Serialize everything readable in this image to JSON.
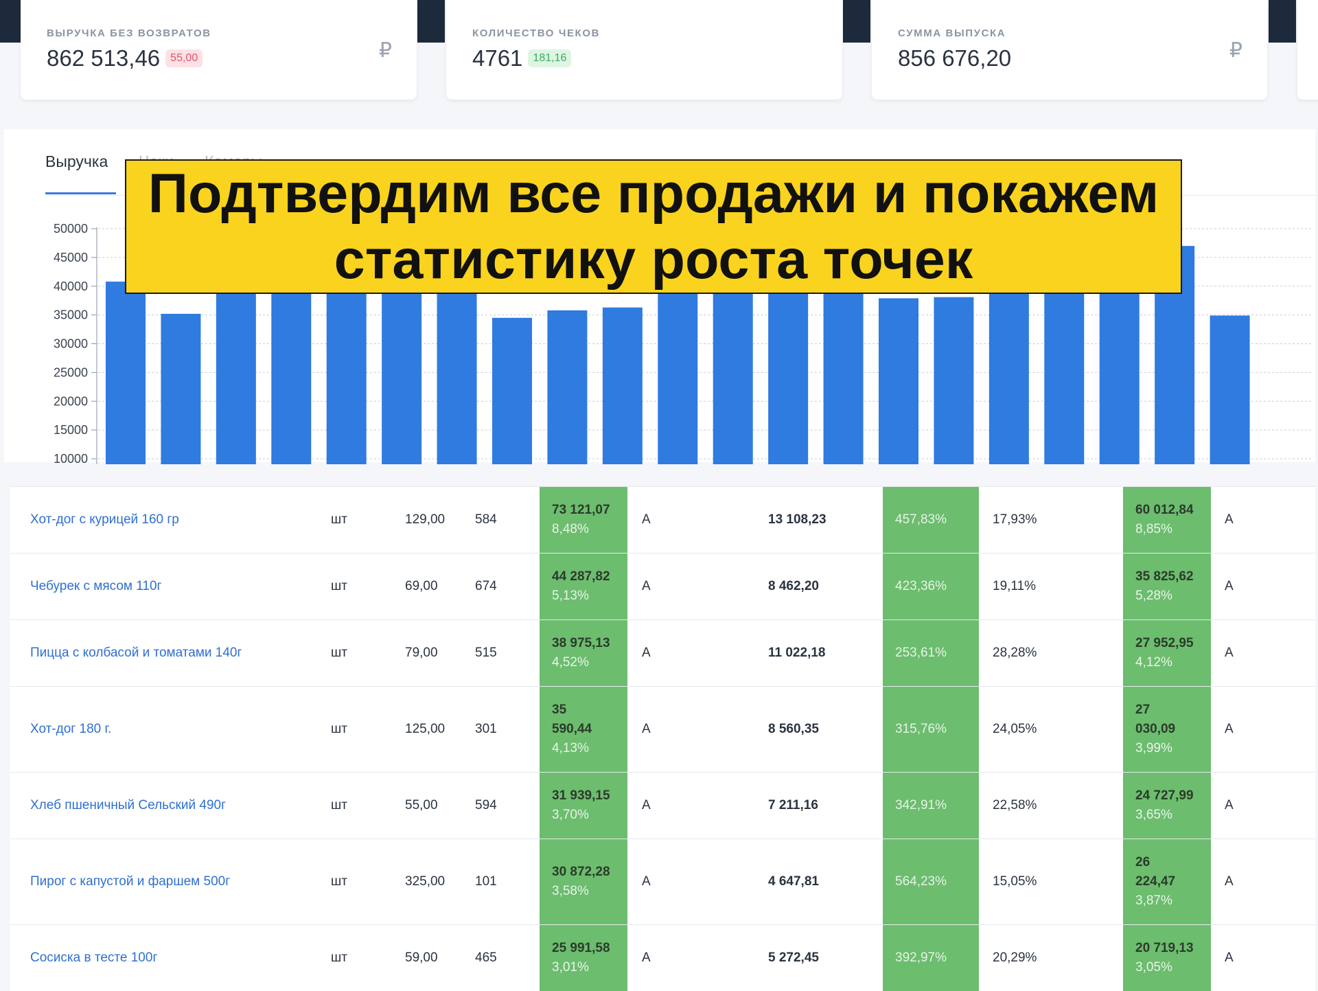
{
  "kpis": [
    {
      "label": "ВЫРУЧКА БЕЗ ВОЗВРАТОВ",
      "value": "862 513,46",
      "badge": "55,00",
      "badge_color": "#e0546a",
      "currency": "₽"
    },
    {
      "label": "КОЛИЧЕСТВО ЧЕКОВ",
      "value": "4761",
      "badge": "181,16",
      "badge_color": "#3aad5d",
      "currency": ""
    },
    {
      "label": "СУММА ВЫПУСКА",
      "value": "856 676,20",
      "badge": "",
      "currency": "₽"
    }
  ],
  "tabs": [
    {
      "label": "Выручка",
      "active": true
    },
    {
      "label": "Чеки",
      "active": false
    },
    {
      "label": "Камеры",
      "active": false
    }
  ],
  "banner": {
    "line1": "Подтвердим все продажи и покажем",
    "line2": "статистику роста точек"
  },
  "chart_data": {
    "type": "bar",
    "color": "#2f7be0",
    "yticks": [
      10000,
      15000,
      20000,
      25000,
      30000,
      35000,
      40000,
      45000,
      50000
    ],
    "ylim": [
      10000,
      50000
    ],
    "values": [
      40800,
      35200,
      41500,
      41500,
      41500,
      41500,
      41500,
      34500,
      35800,
      36300,
      41500,
      41500,
      41500,
      41500,
      37900,
      38100,
      41500,
      41500,
      41500,
      47000,
      34900
    ]
  },
  "table": {
    "rows": [
      {
        "name": "Хот-дог с курицей 160 гр",
        "unit": "шт",
        "price": "129,00",
        "qty": "584",
        "revenue": [
          "73 121,07"
        ],
        "revenue_share": "8,48%",
        "abc1": "A",
        "profit": "13 108,23",
        "markup": "457,83%",
        "margin": "17,93%",
        "cost": [
          "60 012,84"
        ],
        "cost_share": "8,85%",
        "abc2": "A"
      },
      {
        "name": "Чебурек с мясом 110г",
        "unit": "шт",
        "price": "69,00",
        "qty": "674",
        "revenue": [
          "44 287,82"
        ],
        "revenue_share": "5,13%",
        "abc1": "A",
        "profit": "8 462,20",
        "markup": "423,36%",
        "margin": "19,11%",
        "cost": [
          "35 825,62"
        ],
        "cost_share": "5,28%",
        "abc2": "A"
      },
      {
        "name": "Пицца с колбасой и томатами 140г",
        "unit": "шт",
        "price": "79,00",
        "qty": "515",
        "revenue": [
          "38 975,13"
        ],
        "revenue_share": "4,52%",
        "abc1": "A",
        "profit": "11 022,18",
        "markup": "253,61%",
        "margin": "28,28%",
        "cost": [
          "27 952,95"
        ],
        "cost_share": "4,12%",
        "abc2": "A"
      },
      {
        "name": "Хот-дог 180 г.",
        "unit": "шт",
        "price": "125,00",
        "qty": "301",
        "revenue": [
          "35",
          "590,44"
        ],
        "revenue_share": "4,13%",
        "abc1": "A",
        "profit": "8 560,35",
        "markup": "315,76%",
        "margin": "24,05%",
        "cost": [
          "27",
          "030,09"
        ],
        "cost_share": "3,99%",
        "abc2": "A"
      },
      {
        "name": "Хлеб пшеничный Сельский 490г",
        "unit": "шт",
        "price": "55,00",
        "qty": "594",
        "revenue": [
          "31 939,15"
        ],
        "revenue_share": "3,70%",
        "abc1": "A",
        "profit": "7 211,16",
        "markup": "342,91%",
        "margin": "22,58%",
        "cost": [
          "24 727,99"
        ],
        "cost_share": "3,65%",
        "abc2": "A"
      },
      {
        "name": "Пирог с капустой и фаршем 500г",
        "unit": "шт",
        "price": "325,00",
        "qty": "101",
        "revenue": [
          "30 872,28"
        ],
        "revenue_share": "3,58%",
        "abc1": "A",
        "profit": "4 647,81",
        "markup": "564,23%",
        "margin": "15,05%",
        "cost": [
          "26",
          "224,47"
        ],
        "cost_share": "3,87%",
        "abc2": "A"
      },
      {
        "name": "Сосиска в тесте 100г",
        "unit": "шт",
        "price": "59,00",
        "qty": "465",
        "revenue": [
          "25 991,58"
        ],
        "revenue_share": "3,01%",
        "abc1": "A",
        "profit": "5 272,45",
        "markup": "392,97%",
        "margin": "20,29%",
        "cost": [
          "20 719,13"
        ],
        "cost_share": "3,05%",
        "abc2": "A"
      }
    ]
  }
}
